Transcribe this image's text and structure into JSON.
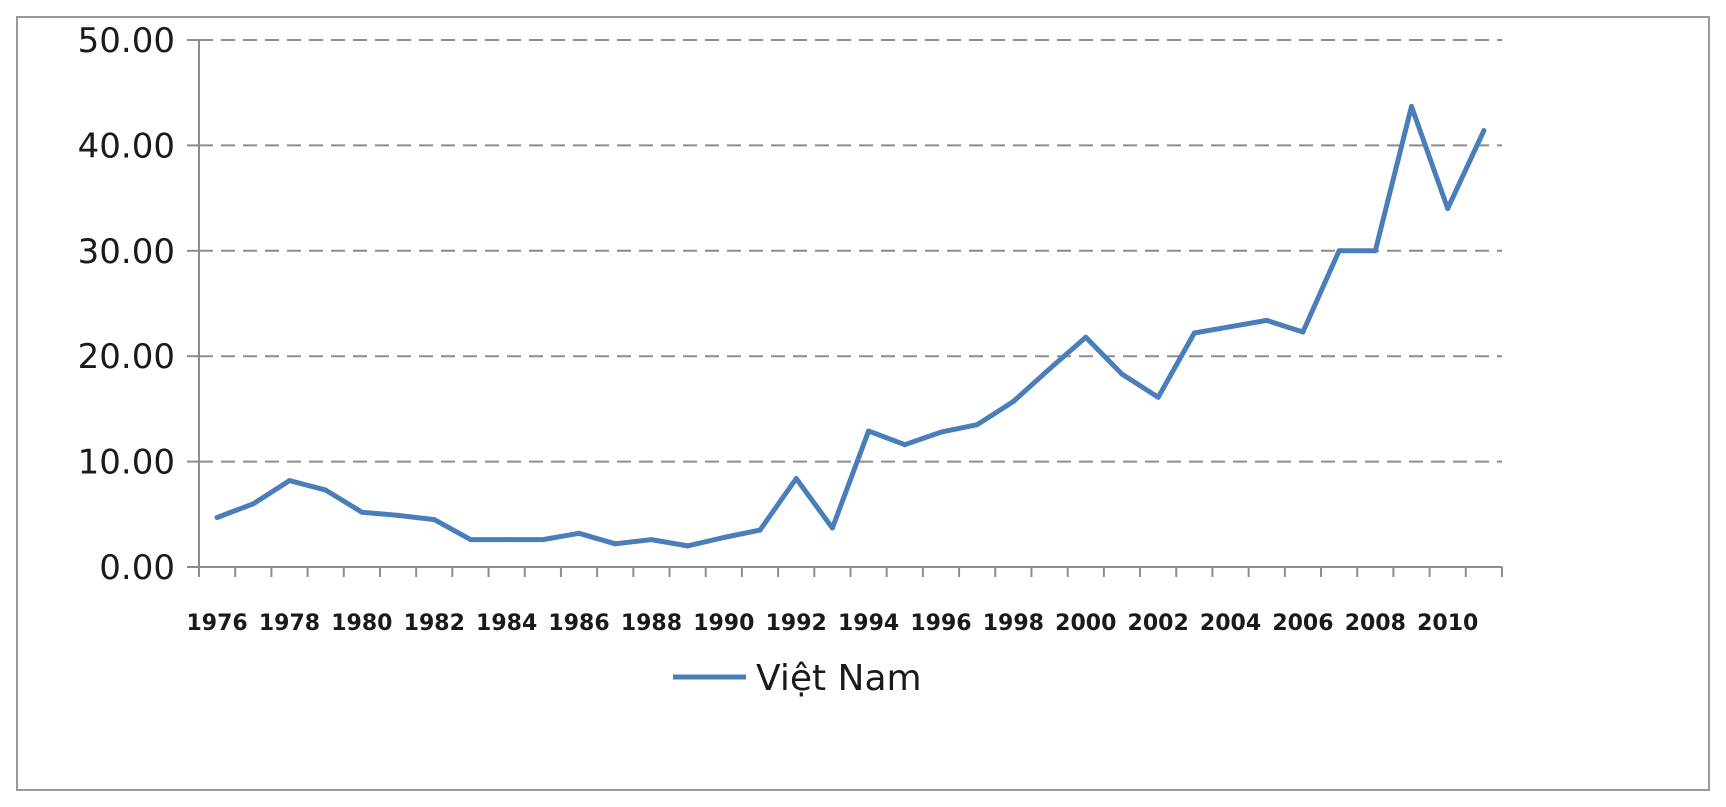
{
  "chart_data": {
    "type": "line",
    "title": "",
    "xlabel": "",
    "ylabel": "",
    "ylim": [
      0,
      50
    ],
    "y_ticks": [
      "0.00",
      "10.00",
      "20.00",
      "30.00",
      "40.00",
      "50.00"
    ],
    "x_tick_labels": [
      "1976",
      "1978",
      "1980",
      "1982",
      "1984",
      "1986",
      "1988",
      "1990",
      "1992",
      "1994",
      "1996",
      "1998",
      "2000",
      "2002",
      "2004",
      "2006",
      "2008",
      "2010"
    ],
    "grid": "horizontal dashed",
    "legend_position": "bottom",
    "x": [
      1976,
      1977,
      1978,
      1979,
      1980,
      1981,
      1982,
      1983,
      1984,
      1985,
      1986,
      1987,
      1988,
      1989,
      1990,
      1991,
      1992,
      1993,
      1994,
      1995,
      1996,
      1997,
      1998,
      1999,
      2000,
      2001,
      2002,
      2003,
      2004,
      2005,
      2006,
      2007,
      2008,
      2009,
      2010,
      2011
    ],
    "series": [
      {
        "name": "Việt Nam",
        "color": "#4a7ebb",
        "values": [
          4.7,
          6.0,
          8.2,
          7.3,
          5.2,
          4.9,
          4.5,
          2.6,
          2.6,
          2.6,
          3.2,
          2.2,
          2.6,
          2.0,
          2.8,
          3.5,
          8.4,
          3.7,
          12.9,
          11.6,
          12.8,
          13.5,
          15.7,
          18.8,
          21.8,
          18.3,
          16.1,
          22.2,
          22.8,
          23.4,
          22.3,
          30.0,
          30.0,
          43.7,
          34.0,
          41.4
        ]
      }
    ]
  }
}
